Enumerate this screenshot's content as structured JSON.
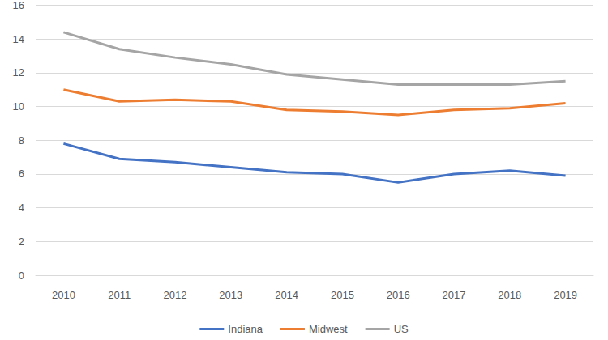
{
  "chart_data": {
    "type": "line",
    "categories": [
      "2010",
      "2011",
      "2012",
      "2013",
      "2014",
      "2015",
      "2016",
      "2017",
      "2018",
      "2019"
    ],
    "series": [
      {
        "name": "Indiana",
        "color": "#4472c4",
        "values": [
          7.8,
          6.9,
          6.7,
          6.4,
          6.1,
          6.0,
          5.5,
          6.0,
          6.2,
          5.9
        ]
      },
      {
        "name": "Midwest",
        "color": "#ed7d31",
        "values": [
          11.0,
          10.3,
          10.4,
          10.3,
          9.8,
          9.7,
          9.5,
          9.8,
          9.9,
          10.2
        ]
      },
      {
        "name": "US",
        "color": "#a5a5a5",
        "values": [
          14.4,
          13.4,
          12.9,
          12.5,
          11.9,
          11.6,
          11.3,
          11.3,
          11.3,
          11.5
        ]
      }
    ],
    "ylim": [
      0,
      16
    ],
    "yticks": [
      0,
      2,
      4,
      6,
      8,
      10,
      12,
      14,
      16
    ],
    "grid": true,
    "legend": "bottom"
  }
}
